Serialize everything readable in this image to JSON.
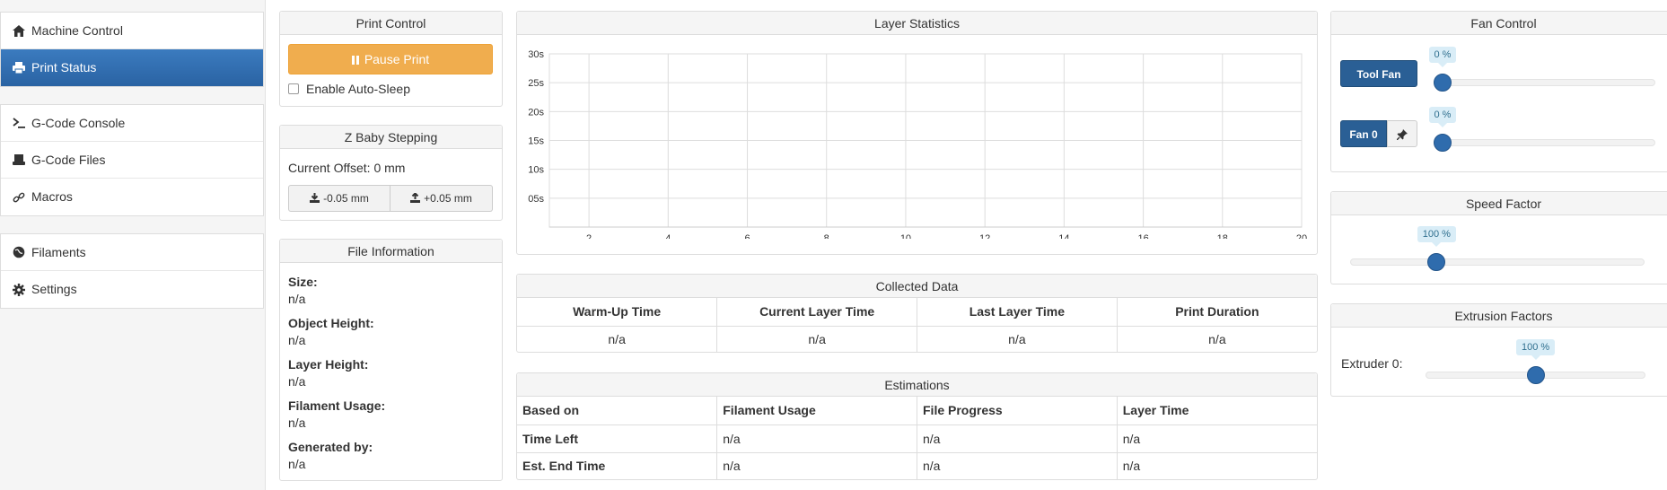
{
  "sidebar": {
    "groups": [
      [
        {
          "label": "Machine Control",
          "icon": "home-icon",
          "active": false
        },
        {
          "label": "Print Status",
          "icon": "print-icon",
          "active": true
        }
      ],
      [
        {
          "label": "G-Code Console",
          "icon": "terminal-icon",
          "active": false
        },
        {
          "label": "G-Code Files",
          "icon": "hdd-icon",
          "active": false
        },
        {
          "label": "Macros",
          "icon": "link-icon",
          "active": false
        }
      ],
      [
        {
          "label": "Filaments",
          "icon": "globe-icon",
          "active": false
        },
        {
          "label": "Settings",
          "icon": "gear-icon",
          "active": false
        }
      ]
    ]
  },
  "print_control": {
    "title": "Print Control",
    "pause_label": "Pause Print",
    "auto_sleep_label": "Enable Auto-Sleep",
    "auto_sleep_checked": false
  },
  "baby_stepping": {
    "title": "Z Baby Stepping",
    "current_offset": "Current Offset: 0 mm",
    "minus_label": "-0.05 mm",
    "plus_label": "+0.05 mm"
  },
  "file_info": {
    "title": "File Information",
    "fields": [
      {
        "label": "Size:",
        "value": "n/a"
      },
      {
        "label": "Object Height:",
        "value": "n/a"
      },
      {
        "label": "Layer Height:",
        "value": "n/a"
      },
      {
        "label": "Filament Usage:",
        "value": "n/a"
      },
      {
        "label": "Generated by:",
        "value": "n/a"
      }
    ]
  },
  "layer_stats": {
    "title": "Layer Statistics"
  },
  "chart_data": {
    "type": "line",
    "title": "",
    "xlabel": "",
    "ylabel": "",
    "x_ticks": [
      2,
      4,
      6,
      8,
      10,
      12,
      14,
      16,
      18,
      20
    ],
    "y_ticks": [
      "05s",
      "10s",
      "15s",
      "20s",
      "25s",
      "30s"
    ],
    "xlim": [
      1,
      20
    ],
    "ylim": [
      0,
      30
    ],
    "grid": true,
    "series": []
  },
  "collected": {
    "title": "Collected Data",
    "headers": [
      "Warm-Up Time",
      "Current Layer Time",
      "Last Layer Time",
      "Print Duration"
    ],
    "values": [
      "n/a",
      "n/a",
      "n/a",
      "n/a"
    ]
  },
  "estimations": {
    "title": "Estimations",
    "headers": [
      "Based on",
      "Filament Usage",
      "File Progress",
      "Layer Time"
    ],
    "rows": [
      [
        "Time Left",
        "n/a",
        "n/a",
        "n/a"
      ],
      [
        "Est. End Time",
        "n/a",
        "n/a",
        "n/a"
      ]
    ]
  },
  "fan_control": {
    "title": "Fan Control",
    "tool_fan_label": "Tool Fan",
    "tool_fan_value": "0 %",
    "tool_fan_fraction": 0,
    "fan0_label": "Fan 0",
    "fan0_value": "0 %",
    "fan0_fraction": 0
  },
  "speed_factor": {
    "title": "Speed Factor",
    "value": "100 %",
    "fraction": 0.28
  },
  "extrusion": {
    "title": "Extrusion Factors",
    "extruder_label": "Extruder 0:",
    "value": "100 %",
    "fraction": 0.5
  },
  "colors": {
    "primary": "#2f6cad",
    "warning": "#f0ad4e",
    "tooltip_bg": "#d9edf7"
  }
}
